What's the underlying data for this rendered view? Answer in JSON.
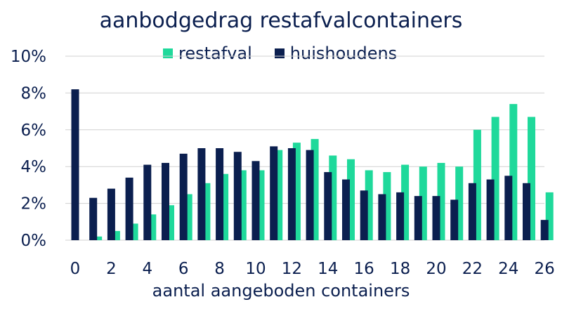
{
  "chart_data": {
    "type": "bar",
    "title": "aanbodgedrag restafvalcontainers",
    "xlabel": "aantal aangeboden containers",
    "ylabel": "",
    "ylim": [
      0,
      10
    ],
    "y_ticks": [
      "0%",
      "2%",
      "4%",
      "6%",
      "8%",
      "10%"
    ],
    "x_tick_labels": [
      "0",
      "2",
      "4",
      "6",
      "8",
      "10",
      "12",
      "14",
      "16",
      "18",
      "20",
      "22",
      "24",
      "26"
    ],
    "categories": [
      0,
      1,
      2,
      3,
      4,
      5,
      6,
      7,
      8,
      9,
      10,
      11,
      12,
      13,
      14,
      15,
      16,
      17,
      18,
      19,
      20,
      21,
      22,
      23,
      24,
      25,
      26
    ],
    "legend_position": "top",
    "series": [
      {
        "name": "restafval",
        "color": "#1fd99b",
        "values": [
          0,
          0.2,
          0.5,
          0.9,
          1.4,
          1.9,
          2.5,
          3.1,
          3.6,
          3.8,
          3.8,
          4.9,
          5.3,
          5.5,
          4.6,
          4.4,
          3.8,
          3.7,
          4.1,
          4.0,
          4.2,
          4.0,
          6.0,
          6.7,
          7.4,
          6.7,
          2.6
        ]
      },
      {
        "name": "huishoudens",
        "color": "#0b1f4f",
        "values": [
          8.2,
          2.3,
          2.8,
          3.4,
          4.1,
          4.2,
          4.7,
          5.0,
          5.0,
          4.8,
          4.3,
          5.1,
          5.0,
          4.9,
          3.7,
          3.3,
          2.7,
          2.5,
          2.6,
          2.4,
          2.4,
          2.2,
          3.1,
          3.3,
          3.5,
          3.1,
          1.1
        ]
      }
    ],
    "grid": true
  }
}
